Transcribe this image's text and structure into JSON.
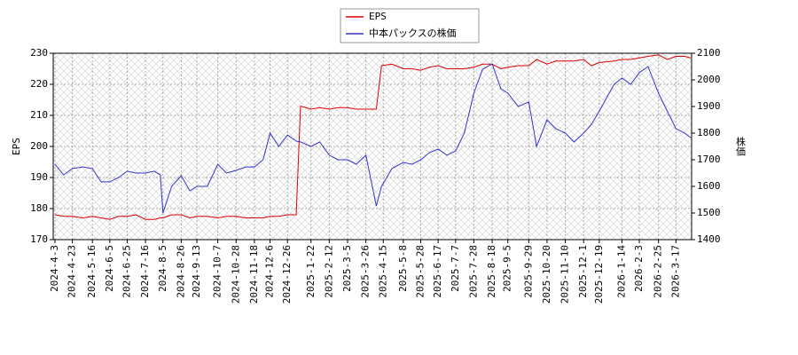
{
  "chart_data": {
    "type": "line",
    "ylabel": "EPS",
    "y2label": "株価",
    "x": [
      "2024-4-3",
      "2024-4-13",
      "2024-4-23",
      "2024-5-5",
      "2024-5-16",
      "2024-5-26",
      "2024-6-5",
      "2024-6-15",
      "2024-6-25",
      "2024-7-5",
      "2024-7-16",
      "2024-7-26",
      "2024-8-2",
      "2024-8-5",
      "2024-8-15",
      "2024-8-26",
      "2024-9-5",
      "2024-9-13",
      "2024-9-25",
      "2024-10-7",
      "2024-10-17",
      "2024-10-28",
      "2024-11-8",
      "2024-11-18",
      "2024-11-28",
      "2024-12-6",
      "2024-12-16",
      "2024-12-26",
      "2025-1-5",
      "2025-1-10",
      "2025-1-22",
      "2025-2-1",
      "2025-2-12",
      "2025-2-22",
      "2025-3-5",
      "2025-3-15",
      "2025-3-26",
      "2025-4-7",
      "2025-4-13",
      "2025-4-25",
      "2025-5-8",
      "2025-5-18",
      "2025-5-28",
      "2025-6-7",
      "2025-6-17",
      "2025-6-27",
      "2025-7-7",
      "2025-7-17",
      "2025-7-28",
      "2025-8-7",
      "2025-8-18",
      "2025-8-28",
      "2025-9-5",
      "2025-9-17",
      "2025-9-29",
      "2025-10-8",
      "2025-10-20",
      "2025-10-30",
      "2025-11-10",
      "2025-11-20",
      "2025-12-1",
      "2025-12-10",
      "2025-12-19",
      "2026-1-5",
      "2026-1-14",
      "2026-1-24",
      "2026-2-3",
      "2026-2-13",
      "2026-2-25",
      "2026-3-7",
      "2026-3-17",
      "2026-3-27",
      "2026-4-3"
    ],
    "series": [
      {
        "name": "EPS",
        "color": "#dd0000",
        "values": [
          178,
          177.5,
          177.5,
          177,
          177.5,
          177,
          176.5,
          177.5,
          177.5,
          178,
          176.5,
          176.5,
          177,
          177,
          178,
          178,
          177,
          177.5,
          177.5,
          177,
          177.5,
          177.5,
          177,
          177,
          177,
          177.5,
          177.5,
          178,
          178,
          213,
          212,
          212.5,
          212,
          212.5,
          212.5,
          212,
          212,
          212,
          226,
          226.5,
          225,
          225,
          224.5,
          225.5,
          226,
          225,
          225,
          225,
          225.5,
          226.5,
          226.5,
          225,
          225.5,
          226,
          226,
          228,
          226.5,
          227.5,
          227.5,
          227.5,
          228,
          226,
          227,
          227.5,
          228,
          228,
          228.5,
          229,
          229.5,
          228,
          229,
          229,
          228.5
        ]
      },
      {
        "name": "中本パックスの株価",
        "color": "#3333cc",
        "axis": "y2",
        "values": [
          1683,
          1643,
          1667,
          1673,
          1667,
          1617,
          1617,
          1633,
          1657,
          1650,
          1650,
          1657,
          1643,
          1500,
          1600,
          1640,
          1583,
          1600,
          1600,
          1683,
          1650,
          1660,
          1673,
          1673,
          1700,
          1800,
          1750,
          1793,
          1770,
          1767,
          1750,
          1767,
          1717,
          1700,
          1700,
          1683,
          1717,
          1527,
          1600,
          1667,
          1690,
          1683,
          1700,
          1727,
          1740,
          1717,
          1733,
          1800,
          1950,
          2040,
          2060,
          1967,
          1950,
          1900,
          1917,
          1750,
          1850,
          1817,
          1800,
          1767,
          1800,
          1833,
          1883,
          1983,
          2007,
          1983,
          2027,
          2050,
          1950,
          1883,
          1817,
          1800,
          1783
        ]
      }
    ],
    "xlim": [
      "2024-4-1",
      "2026-4-4"
    ],
    "xticks": [
      "2024-4-3",
      "2024-4-23",
      "2024-5-16",
      "2024-6-5",
      "2024-6-25",
      "2024-7-16",
      "2024-8-5",
      "2024-8-26",
      "2024-9-13",
      "2024-10-7",
      "2024-10-28",
      "2024-11-18",
      "2024-12-6",
      "2024-12-26",
      "2025-1-22",
      "2025-2-12",
      "2025-3-5",
      "2025-3-26",
      "2025-4-15",
      "2025-5-8",
      "2025-5-28",
      "2025-6-17",
      "2025-7-7",
      "2025-7-28",
      "2025-8-18",
      "2025-9-5",
      "2025-9-29",
      "2025-10-20",
      "2025-11-10",
      "2025-12-1",
      "2025-12-19",
      "2026-1-14",
      "2026-2-3",
      "2026-2-25",
      "2026-3-17"
    ],
    "ylim": [
      170,
      230
    ],
    "yticks": [
      170,
      180,
      190,
      200,
      210,
      220,
      230
    ],
    "y2lim": [
      1400,
      2100
    ],
    "y2ticks": [
      1400,
      1500,
      1600,
      1700,
      1800,
      1900,
      2000,
      2100
    ],
    "grid": true,
    "legend": "top"
  }
}
